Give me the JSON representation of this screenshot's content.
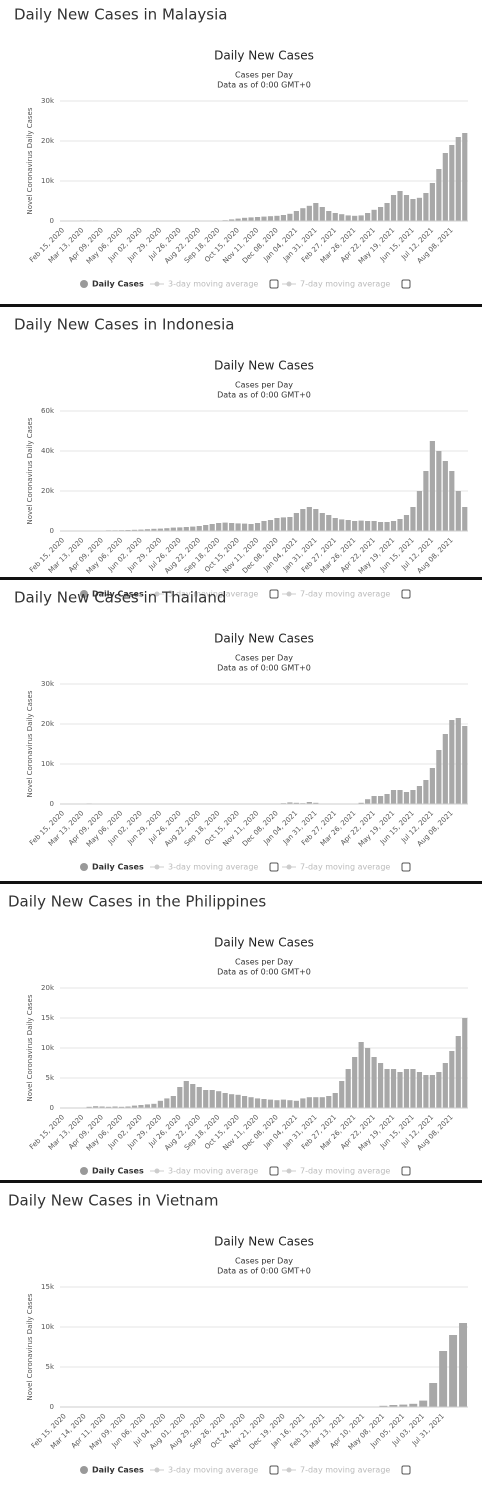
{
  "chart_data": [
    {
      "type": "bar",
      "heading": "Daily New Cases in Malaysia",
      "title": "Daily New Cases",
      "subtitle": [
        "Cases per Day",
        "Data as of 0:00 GMT+0"
      ],
      "y_label": "Novel Coronavirus Daily Cases",
      "categories": [
        "Feb 15, 2020",
        null,
        null,
        "Mar 13, 2020",
        null,
        null,
        "Apr 09, 2020",
        null,
        null,
        "May 06, 2020",
        null,
        null,
        "Jun 02, 2020",
        null,
        null,
        "Jun 29, 2020",
        null,
        null,
        "Jul 26, 2020",
        null,
        null,
        "Aug 22, 2020",
        null,
        null,
        "Sep 18, 2020",
        null,
        null,
        "Oct 15, 2020",
        null,
        null,
        "Nov 11, 2020",
        null,
        null,
        "Dec 08, 2020",
        null,
        null,
        "Jan 04, 2021",
        null,
        null,
        "Jan 31, 2021",
        null,
        null,
        "Feb 27, 2021",
        null,
        null,
        "Mar 26, 2021",
        null,
        null,
        "Apr 22, 2021",
        null,
        null,
        "May 19, 2021",
        null,
        null,
        "Jun 15, 2021",
        null,
        null,
        "Jul 12, 2021",
        null,
        null,
        "Aug 08, 2021",
        null,
        null
      ],
      "series": [
        {
          "name": "Daily Cases",
          "color": "#a8a8a8",
          "values": [
            0,
            2,
            30,
            150,
            150,
            150,
            100,
            50,
            40,
            50,
            30,
            40,
            50,
            20,
            10,
            5,
            10,
            15,
            15,
            20,
            20,
            10,
            30,
            60,
            100,
            200,
            400,
            600,
            800,
            900,
            1000,
            1100,
            1200,
            1300,
            1500,
            1800,
            2500,
            3200,
            3800,
            4500,
            3500,
            2500,
            2000,
            1700,
            1400,
            1300,
            1400,
            2000,
            2800,
            3500,
            4500,
            6500,
            7500,
            6500,
            5500,
            5800,
            7000,
            9500,
            13000,
            17000,
            19000,
            21000,
            22000
          ]
        }
      ],
      "legend_hidden": [
        "3-day moving average",
        "7-day moving average"
      ],
      "ylim": [
        0,
        30000
      ],
      "yticks": [
        0,
        {
          "value": 10000,
          "label": "10k"
        },
        {
          "value": 20000,
          "label": "20k"
        },
        {
          "value": 30000,
          "label": "30k"
        }
      ],
      "grid": true
    },
    {
      "type": "bar",
      "heading": "Daily New Cases in Indonesia",
      "title": "Daily New Cases",
      "subtitle": [
        "Cases per Day",
        "Data as of 0:00 GMT+0"
      ],
      "y_label": "Novel Coronavirus Daily Cases",
      "categories": [
        "Feb 15, 2020",
        null,
        null,
        "Mar 13, 2020",
        null,
        null,
        "Apr 09, 2020",
        null,
        null,
        "May 06, 2020",
        null,
        null,
        "Jun 02, 2020",
        null,
        null,
        "Jun 29, 2020",
        null,
        null,
        "Jul 26, 2020",
        null,
        null,
        "Aug 22, 2020",
        null,
        null,
        "Sep 18, 2020",
        null,
        null,
        "Oct 15, 2020",
        null,
        null,
        "Nov 11, 2020",
        null,
        null,
        "Dec 08, 2020",
        null,
        null,
        "Jan 04, 2021",
        null,
        null,
        "Jan 31, 2021",
        null,
        null,
        "Feb 27, 2021",
        null,
        null,
        "Mar 26, 2021",
        null,
        null,
        "Apr 22, 2021",
        null,
        null,
        "May 19, 2021",
        null,
        null,
        "Jun 15, 2021",
        null,
        null,
        "Jul 12, 2021",
        null,
        null,
        "Aug 08, 2021",
        null,
        null
      ],
      "series": [
        {
          "name": "Daily Cases",
          "color": "#a8a8a8",
          "values": [
            0,
            0,
            0,
            5,
            100,
            150,
            250,
            350,
            350,
            400,
            500,
            600,
            700,
            900,
            1100,
            1200,
            1400,
            1700,
            1800,
            2000,
            2200,
            2500,
            3000,
            3500,
            4000,
            4200,
            4000,
            3800,
            3700,
            3500,
            4000,
            5000,
            5500,
            6500,
            6800,
            7000,
            9000,
            11000,
            12000,
            11000,
            9000,
            8000,
            6500,
            5800,
            5500,
            5000,
            5200,
            5000,
            5000,
            4500,
            4500,
            5000,
            6000,
            8000,
            12000,
            20000,
            30000,
            45000,
            40000,
            35000,
            30000,
            20000,
            12000
          ]
        }
      ],
      "legend_hidden": [
        "3-day moving average",
        "7-day moving average"
      ],
      "ylim": [
        0,
        60000
      ],
      "yticks": [
        0,
        {
          "value": 20000,
          "label": "20k"
        },
        {
          "value": 40000,
          "label": "40k"
        },
        {
          "value": 60000,
          "label": "60k"
        }
      ],
      "grid": true
    },
    {
      "type": "bar",
      "heading": "Daily New Cases in Thailand",
      "title": "Daily New Cases",
      "subtitle": [
        "Cases per Day",
        "Data as of 0:00 GMT+0"
      ],
      "y_label": "Novel Coronavirus Daily Cases",
      "categories": [
        "Feb 15, 2020",
        null,
        null,
        "Mar 13, 2020",
        null,
        null,
        "Apr 09, 2020",
        null,
        null,
        "May 06, 2020",
        null,
        null,
        "Jun 02, 2020",
        null,
        null,
        "Jun 29, 2020",
        null,
        null,
        "Jul 26, 2020",
        null,
        null,
        "Aug 22, 2020",
        null,
        null,
        "Sep 18, 2020",
        null,
        null,
        "Oct 15, 2020",
        null,
        null,
        "Nov 11, 2020",
        null,
        null,
        "Dec 08, 2020",
        null,
        null,
        "Jan 04, 2021",
        null,
        null,
        "Jan 31, 2021",
        null,
        null,
        "Feb 27, 2021",
        null,
        null,
        "Mar 26, 2021",
        null,
        null,
        "Apr 22, 2021",
        null,
        null,
        "May 19, 2021",
        null,
        null,
        "Jun 15, 2021",
        null,
        null,
        "Jul 12, 2021",
        null,
        null,
        "Aug 08, 2021",
        null,
        null
      ],
      "series": [
        {
          "name": "Daily Cases",
          "color": "#a8a8a8",
          "values": [
            5,
            10,
            30,
            100,
            150,
            80,
            20,
            5,
            5,
            5,
            5,
            5,
            5,
            5,
            5,
            5,
            5,
            5,
            5,
            5,
            5,
            5,
            5,
            5,
            5,
            5,
            5,
            5,
            5,
            5,
            5,
            5,
            5,
            10,
            200,
            400,
            300,
            200,
            500,
            300,
            100,
            100,
            80,
            80,
            100,
            80,
            300,
            1200,
            2000,
            2000,
            2500,
            3500,
            3500,
            3000,
            3500,
            4500,
            6000,
            9000,
            13500,
            17500,
            21000,
            21500,
            19500
          ]
        }
      ],
      "legend_hidden": [
        "3-day moving average",
        "7-day moving average"
      ],
      "ylim": [
        0,
        30000
      ],
      "yticks": [
        0,
        {
          "value": 10000,
          "label": "10k"
        },
        {
          "value": 20000,
          "label": "20k"
        },
        {
          "value": 30000,
          "label": "30k"
        }
      ],
      "grid": true
    },
    {
      "type": "bar",
      "heading": "Daily New Cases in the Philippines",
      "title": "Daily New Cases",
      "subtitle": [
        "Cases per Day",
        "Data as of 0:00 GMT+0"
      ],
      "y_label": "Novel Coronavirus Daily Cases",
      "categories": [
        "Feb 15, 2020",
        null,
        null,
        "Mar 13, 2020",
        null,
        null,
        "Apr 09, 2020",
        null,
        null,
        "May 06, 2020",
        null,
        null,
        "Jun 02, 2020",
        null,
        null,
        "Jun 29, 2020",
        null,
        null,
        "Jul 26, 2020",
        null,
        null,
        "Aug 22, 2020",
        null,
        null,
        "Sep 18, 2020",
        null,
        null,
        "Oct 15, 2020",
        null,
        null,
        "Nov 11, 2020",
        null,
        null,
        "Dec 08, 2020",
        null,
        null,
        "Jan 04, 2021",
        null,
        null,
        "Jan 31, 2021",
        null,
        null,
        "Feb 27, 2021",
        null,
        null,
        "Mar 26, 2021",
        null,
        null,
        "Apr 22, 2021",
        null,
        null,
        "May 19, 2021",
        null,
        null,
        "Jun 15, 2021",
        null,
        null,
        "Jul 12, 2021",
        null,
        null,
        "Aug 08, 2021",
        null,
        null
      ],
      "series": [
        {
          "name": "Daily Cases",
          "color": "#a8a8a8",
          "values": [
            0,
            1,
            10,
            50,
            200,
            300,
            250,
            200,
            250,
            200,
            250,
            400,
            500,
            600,
            700,
            1200,
            1600,
            2000,
            3500,
            4500,
            4000,
            3500,
            3000,
            3000,
            2800,
            2500,
            2300,
            2200,
            2000,
            1800,
            1600,
            1500,
            1400,
            1300,
            1400,
            1300,
            1200,
            1600,
            1800,
            1800,
            1800,
            2000,
            2500,
            4500,
            6500,
            8500,
            11000,
            10000,
            8500,
            7500,
            6500,
            6500,
            6000,
            6500,
            6500,
            6000,
            5500,
            5500,
            6000,
            7500,
            9500,
            12000,
            15000
          ]
        }
      ],
      "legend_hidden": [
        "3-day moving average",
        "7-day moving average"
      ],
      "ylim": [
        0,
        20000
      ],
      "yticks": [
        0,
        {
          "value": 5000,
          "label": "5k"
        },
        {
          "value": 10000,
          "label": "10k"
        },
        {
          "value": 15000,
          "label": "15k"
        },
        {
          "value": 20000,
          "label": "20k"
        }
      ],
      "grid": true
    },
    {
      "type": "bar",
      "heading": "Daily New Cases in Vietnam",
      "title": "Daily New Cases",
      "subtitle": [
        "Cases per Day",
        "Data as of 0:00 GMT+0"
      ],
      "y_label": "Novel Coronavirus Daily Cases",
      "categories": [
        "Feb 15, 2020",
        null,
        "Mar 14, 2020",
        null,
        "Apr 11, 2020",
        null,
        "May 09, 2020",
        null,
        "Jun 06, 2020",
        null,
        "Jul 04, 2020",
        null,
        "Aug 01, 2020",
        null,
        "Aug 29, 2020",
        null,
        "Sep 26, 2020",
        null,
        "Oct 24, 2020",
        null,
        "Nov 21, 2020",
        null,
        "Dec 19, 2020",
        null,
        "Jan 16, 2021",
        null,
        "Feb 13, 2021",
        null,
        "Mar 13, 2021",
        null,
        "Apr 10, 2021",
        null,
        "May 08, 2021",
        null,
        "Jun 05, 2021",
        null,
        "Jul 03, 2021",
        null,
        "Jul 31, 2021",
        null,
        null
      ],
      "series": [
        {
          "name": "Daily Cases",
          "color": "#a8a8a8",
          "values": [
            0,
            5,
            10,
            15,
            5,
            2,
            1,
            2,
            1,
            2,
            1,
            5,
            30,
            20,
            5,
            2,
            2,
            2,
            2,
            2,
            3,
            3,
            5,
            5,
            10,
            30,
            20,
            10,
            5,
            5,
            10,
            50,
            150,
            250,
            300,
            400,
            800,
            3000,
            7000,
            9000,
            10500
          ]
        }
      ],
      "legend_hidden": [
        "3-day moving average",
        "7-day moving average"
      ],
      "ylim": [
        0,
        15000
      ],
      "yticks": [
        0,
        {
          "value": 5000,
          "label": "5k"
        },
        {
          "value": 10000,
          "label": "10k"
        },
        {
          "value": 15000,
          "label": "15k"
        }
      ],
      "grid": true
    }
  ]
}
